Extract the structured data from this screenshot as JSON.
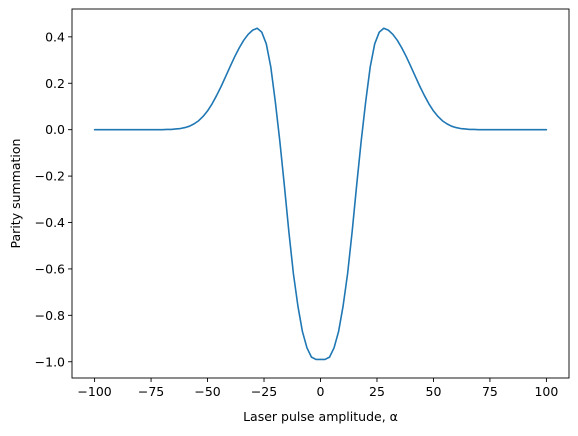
{
  "chart_data": {
    "type": "line",
    "title": "",
    "xlabel": "Laser pulse amplitude, α",
    "ylabel": "Parity summation",
    "xlim": [
      -110,
      110
    ],
    "ylim": [
      -1.07,
      0.52
    ],
    "xticks": [
      -100,
      -75,
      -50,
      -25,
      0,
      25,
      50,
      75,
      100
    ],
    "xtick_labels": [
      "−100",
      "−75",
      "−50",
      "−25",
      "0",
      "25",
      "50",
      "75",
      "100"
    ],
    "yticks": [
      -1.0,
      -0.8,
      -0.6,
      -0.4,
      -0.2,
      0.0,
      0.2,
      0.4
    ],
    "ytick_labels": [
      "−1.0",
      "−0.8",
      "−0.6",
      "−0.4",
      "−0.2",
      "0.0",
      "0.2",
      "0.4"
    ],
    "grid": false,
    "series": [
      {
        "color": "#1f77b4",
        "x": [
          -100,
          -98,
          -96,
          -94,
          -92,
          -90,
          -88,
          -86,
          -84,
          -82,
          -80,
          -78,
          -76,
          -74,
          -72,
          -70,
          -68,
          -66,
          -64,
          -62,
          -60,
          -58,
          -56,
          -54,
          -52,
          -50,
          -48,
          -46,
          -44,
          -42,
          -40,
          -38,
          -36,
          -34,
          -32,
          -30,
          -28,
          -26,
          -24,
          -22,
          -20,
          -18,
          -16,
          -14,
          -12,
          -10,
          -8,
          -6,
          -4,
          -2,
          0,
          2,
          4,
          6,
          8,
          10,
          12,
          14,
          16,
          18,
          20,
          22,
          24,
          26,
          28,
          30,
          32,
          34,
          36,
          38,
          40,
          42,
          44,
          46,
          48,
          50,
          52,
          54,
          56,
          58,
          60,
          62,
          64,
          66,
          68,
          70,
          72,
          74,
          76,
          78,
          80,
          82,
          84,
          86,
          88,
          90,
          92,
          94,
          96,
          98,
          100
        ],
        "y": [
          0.0,
          0.0,
          0.0,
          0.0,
          0.0,
          0.0,
          0.0,
          0.0,
          0.0,
          0.0,
          0.0,
          0.0,
          0.0,
          0.0,
          0.0,
          0.0,
          0.001,
          0.001,
          0.003,
          0.005,
          0.009,
          0.015,
          0.025,
          0.038,
          0.057,
          0.081,
          0.111,
          0.147,
          0.186,
          0.229,
          0.272,
          0.314,
          0.352,
          0.385,
          0.411,
          0.429,
          0.437,
          0.42,
          0.37,
          0.27,
          0.12,
          -0.05,
          -0.24,
          -0.44,
          -0.62,
          -0.76,
          -0.87,
          -0.94,
          -0.98,
          -0.99,
          -0.99,
          -0.99,
          -0.98,
          -0.94,
          -0.87,
          -0.76,
          -0.62,
          -0.44,
          -0.24,
          -0.05,
          0.12,
          0.27,
          0.37,
          0.42,
          0.437,
          0.429,
          0.411,
          0.385,
          0.352,
          0.314,
          0.272,
          0.229,
          0.186,
          0.147,
          0.111,
          0.081,
          0.057,
          0.038,
          0.025,
          0.015,
          0.009,
          0.005,
          0.003,
          0.001,
          0.001,
          0.0,
          0.0,
          0.0,
          0.0,
          0.0,
          0.0,
          0.0,
          0.0,
          0.0,
          0.0,
          0.0,
          0.0,
          0.0,
          0.0,
          0.0,
          0.0
        ]
      }
    ]
  }
}
